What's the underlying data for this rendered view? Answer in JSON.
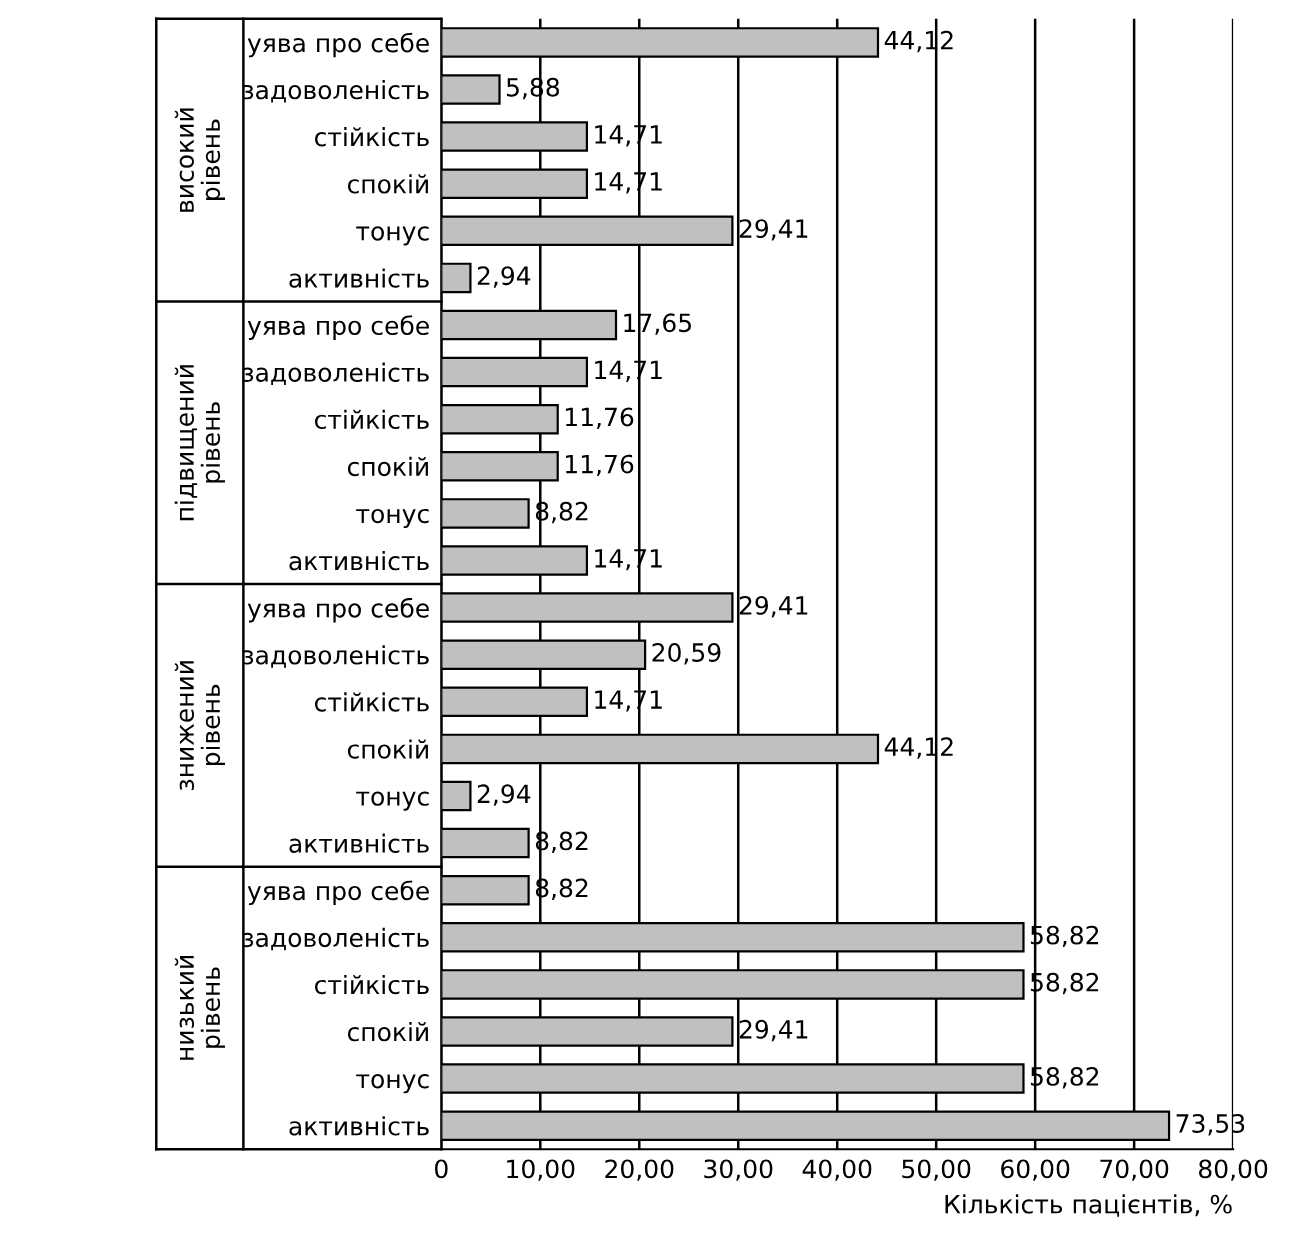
{
  "chart_data": {
    "type": "bar",
    "orientation": "horizontal",
    "xlabel": "Кількість пацієнтів, %",
    "categories": [
      "уява про себе",
      "задоволеність",
      "стійкість",
      "спокій",
      "тонус",
      "активність",
      "уява про себе",
      "задоволеність",
      "стійкість",
      "спокій",
      "тонус",
      "активність",
      "уява про себе",
      "задоволеність",
      "стійкість",
      "спокій",
      "тонус",
      "активність",
      "уява про себе",
      "задоволеність",
      "стійкість",
      "спокій",
      "тонус",
      "активність"
    ],
    "values": [
      44.12,
      5.88,
      14.71,
      14.71,
      29.41,
      2.94,
      17.65,
      14.71,
      11.76,
      11.76,
      8.82,
      14.71,
      29.41,
      20.59,
      14.71,
      44.12,
      2.94,
      8.82,
      8.82,
      58.82,
      58.82,
      29.41,
      58.82,
      73.53
    ],
    "value_labels": [
      "44,12",
      "5,88",
      "14,71",
      "14,71",
      "29,41",
      "2,94",
      "17,65",
      "14,71",
      "11,76",
      "11,76",
      "8,82",
      "14,71",
      "29,41",
      "20,59",
      "14,71",
      "44,12",
      "2,94",
      "8,82",
      "8,82",
      "58,82",
      "58,82",
      "29,41",
      "58,82",
      "73,53"
    ],
    "color": "#c0c0c0",
    "annotations": [
      "високий рівень",
      "підвищений рівень",
      "знижений рівень",
      "низький рівень"
    ],
    "xlim": [
      0,
      80
    ],
    "xticks": [
      0,
      {
        "value": 10,
        "label": "10,00"
      },
      {
        "value": 20,
        "label": "20,00"
      },
      {
        "value": 30,
        "label": "30,00"
      },
      {
        "value": 40,
        "label": "40,00"
      },
      {
        "value": 50,
        "label": "50,00"
      },
      {
        "value": 60,
        "label": "60,00"
      },
      {
        "value": 70,
        "label": "70,00"
      },
      {
        "value": 80,
        "label": "80,00"
      }
    ],
    "grid": "x"
  }
}
